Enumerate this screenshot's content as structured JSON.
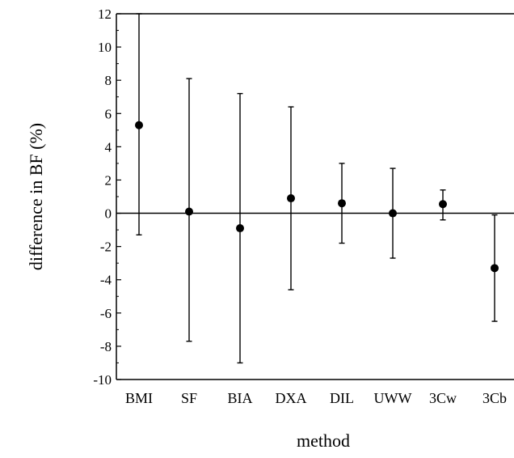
{
  "chart_data": {
    "type": "errorbar",
    "xlabel": "method",
    "ylabel": "difference in BF (%)",
    "categories": [
      "BMI",
      "SF",
      "BIA",
      "DXA",
      "DIL",
      "UWW",
      "3Cw",
      "3Cb"
    ],
    "series": [
      {
        "values": [
          5.3,
          0.1,
          -0.9,
          0.9,
          0.6,
          0.0,
          0.55,
          -3.3
        ],
        "lower": [
          -1.3,
          -7.7,
          -9.0,
          -4.6,
          -1.8,
          -2.7,
          -0.4,
          -6.5
        ],
        "upper": [
          12.0,
          8.1,
          7.2,
          6.4,
          3.0,
          2.7,
          1.4,
          -0.1
        ]
      }
    ],
    "ylim": [
      -10,
      12
    ],
    "yticks": [
      "-10",
      "-8",
      "-6",
      "-4",
      "-2",
      "0",
      "2",
      "4",
      "6",
      "8",
      "10",
      "12"
    ],
    "zero_line": true,
    "grid": false,
    "colors": {
      "marks": "#000000"
    }
  }
}
